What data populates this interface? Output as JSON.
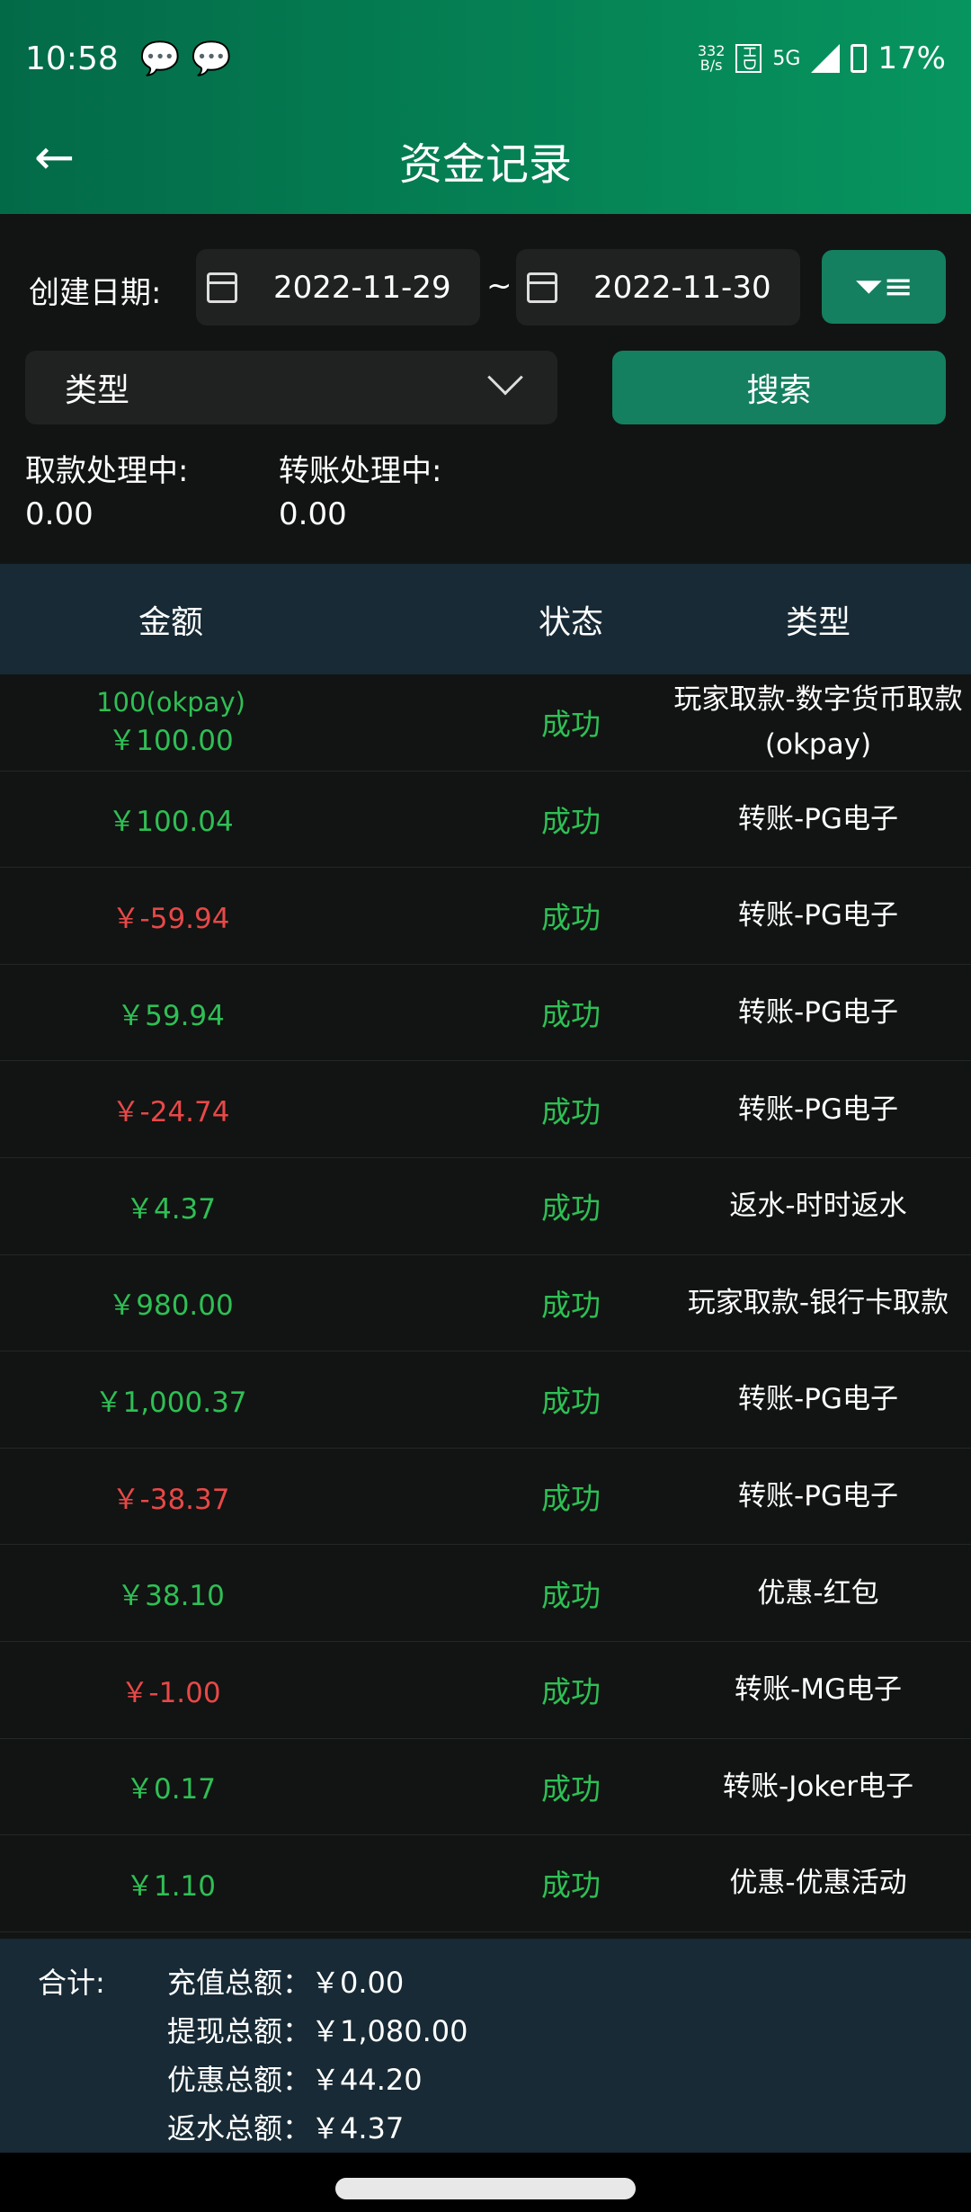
{
  "status_bar": {
    "time": "10:58",
    "net_speed": "332",
    "net_unit": "B/s",
    "hd": "HD",
    "network": "5G",
    "battery": "17%",
    "icons": [
      "wechat-icon",
      "wechat-icon",
      "signal-icon",
      "battery-icon"
    ]
  },
  "header": {
    "title": "资金记录",
    "back_icon": "arrow-left-icon"
  },
  "filters": {
    "date_label": "创建日期:",
    "start_date": "2022-11-29",
    "separator": "~",
    "end_date": "2022-11-30",
    "type_placeholder": "类型",
    "search_label": "搜索"
  },
  "pending": {
    "withdraw_label": "取款处理中:",
    "withdraw_value": "0.00",
    "transfer_label": "转账处理中:",
    "transfer_value": "0.00"
  },
  "table": {
    "headers": [
      "金额",
      "状态",
      "类型"
    ],
    "rows": [
      {
        "sub": "100(okpay)",
        "amount": "￥100.00",
        "sign": "pos",
        "status": "成功",
        "type": "玩家取款-数字货币取款(okpay)"
      },
      {
        "amount": "￥100.04",
        "sign": "pos",
        "status": "成功",
        "type": "转账-PG电子"
      },
      {
        "amount": "￥-59.94",
        "sign": "neg",
        "status": "成功",
        "type": "转账-PG电子"
      },
      {
        "amount": "￥59.94",
        "sign": "pos",
        "status": "成功",
        "type": "转账-PG电子"
      },
      {
        "amount": "￥-24.74",
        "sign": "neg",
        "status": "成功",
        "type": "转账-PG电子"
      },
      {
        "amount": "￥4.37",
        "sign": "pos",
        "status": "成功",
        "type": "返水-时时返水"
      },
      {
        "amount": "￥980.00",
        "sign": "pos",
        "status": "成功",
        "type": "玩家取款-银行卡取款"
      },
      {
        "amount": "￥1,000.37",
        "sign": "pos",
        "status": "成功",
        "type": "转账-PG电子"
      },
      {
        "amount": "￥-38.37",
        "sign": "neg",
        "status": "成功",
        "type": "转账-PG电子"
      },
      {
        "amount": "￥38.10",
        "sign": "pos",
        "status": "成功",
        "type": "优惠-红包"
      },
      {
        "amount": "￥-1.00",
        "sign": "neg",
        "status": "成功",
        "type": "转账-MG电子"
      },
      {
        "amount": "￥0.17",
        "sign": "pos",
        "status": "成功",
        "type": "转账-Joker电子"
      },
      {
        "amount": "￥1.10",
        "sign": "pos",
        "status": "成功",
        "type": "优惠-优惠活动"
      }
    ]
  },
  "summary": {
    "label": "合计:",
    "lines": [
      "充值总额：￥0.00",
      "提现总额：￥1,080.00",
      "优惠总额：￥44.20",
      "返水总额：￥4.37"
    ]
  },
  "colors": {
    "header": "#07955f",
    "button": "#148060",
    "positive": "#2fbf55",
    "negative": "#e84848",
    "table_header": "#172a35"
  }
}
